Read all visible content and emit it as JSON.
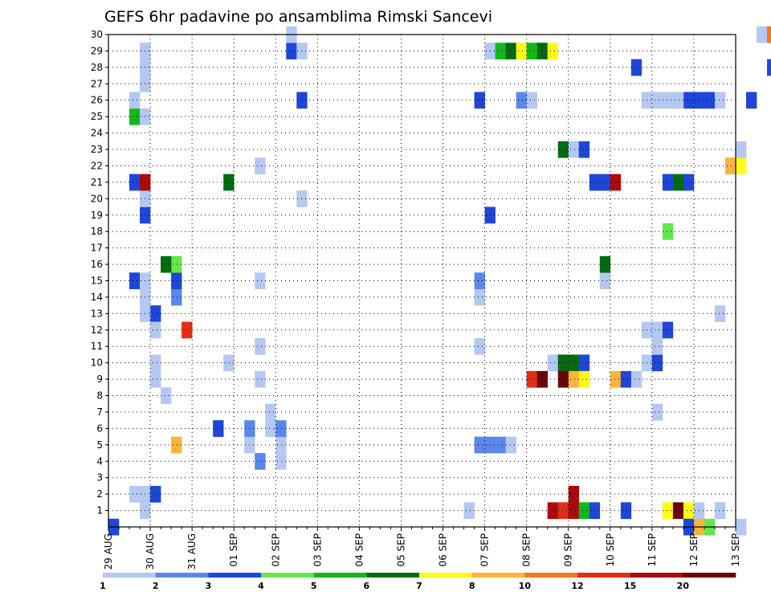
{
  "chart_data": {
    "type": "heatmap",
    "title": "GEFS 6hr padavine po ansamblima Rimski Sancevi",
    "y_ticks": [
      1,
      2,
      3,
      4,
      5,
      6,
      7,
      8,
      9,
      10,
      11,
      12,
      13,
      14,
      15,
      16,
      17,
      18,
      19,
      20,
      21,
      22,
      23,
      24,
      25,
      26,
      27,
      28,
      29,
      30
    ],
    "x_tick_labels": [
      "29 AUG",
      "30 AUG",
      "31 AUG",
      "01 SEP",
      "02 SEP",
      "03 SEP",
      "04 SEP",
      "05 SEP",
      "06 SEP",
      "07 SEP",
      "08 SEP",
      "09 SEP",
      "10 SEP",
      "11 SEP",
      "12 SEP",
      "13 SEP"
    ],
    "x_unit": "6-hour steps from 29 AUG 00Z",
    "grid": "dotted",
    "legend": {
      "labels": [
        "1",
        "2",
        "3",
        "4",
        "5",
        "6",
        "7",
        "8",
        "10",
        "12",
        "15",
        "20"
      ],
      "colors": [
        "#b4c8f2",
        "#5a87eb",
        "#1e46d8",
        "#66e64c",
        "#11b81a",
        "#056b12",
        "#fefa14",
        "#fbb43c",
        "#f5781e",
        "#e32d14",
        "#ae0a0a",
        "#6d0506"
      ]
    },
    "cells": [
      [
        0,
        0,
        2
      ],
      [
        6,
        14,
        1
      ],
      [
        6,
        15,
        2
      ],
      [
        6,
        16,
        3
      ],
      [
        3,
        1,
        0
      ],
      [
        3,
        2,
        0
      ],
      [
        2,
        2,
        0
      ],
      [
        6,
        5,
        7
      ],
      [
        5,
        8,
        0
      ],
      [
        4,
        9,
        0
      ],
      [
        4,
        10,
        0
      ],
      [
        7,
        12,
        9
      ],
      [
        4,
        13,
        2
      ],
      [
        3,
        13,
        0
      ],
      [
        3,
        14,
        0
      ],
      [
        2,
        15,
        2
      ],
      [
        3,
        15,
        0
      ],
      [
        5,
        16,
        5
      ],
      [
        3,
        19,
        2
      ],
      [
        3,
        20,
        0
      ],
      [
        2,
        21,
        2
      ],
      [
        3,
        21,
        10
      ],
      [
        2,
        25,
        4
      ],
      [
        3,
        25,
        0
      ],
      [
        2,
        26,
        0
      ],
      [
        3,
        27,
        0
      ],
      [
        3,
        28,
        0
      ],
      [
        3,
        29,
        0
      ],
      [
        4,
        2,
        2
      ],
      [
        4,
        12,
        0
      ],
      [
        11,
        10,
        0
      ],
      [
        11,
        21,
        5
      ],
      [
        10,
        6,
        2
      ],
      [
        13,
        5,
        0
      ],
      [
        13,
        6,
        1
      ],
      [
        14,
        4,
        1
      ],
      [
        14,
        9,
        0
      ],
      [
        14,
        11,
        0
      ],
      [
        14,
        15,
        0
      ],
      [
        14,
        22,
        0
      ],
      [
        15,
        6,
        0
      ],
      [
        15,
        7,
        0
      ],
      [
        16,
        4,
        0
      ],
      [
        16,
        5,
        0
      ],
      [
        16,
        6,
        1
      ],
      [
        17,
        29,
        2
      ],
      [
        17,
        30,
        0
      ],
      [
        18,
        20,
        0
      ],
      [
        18,
        26,
        2
      ],
      [
        18,
        29,
        0
      ],
      [
        34,
        1,
        0
      ],
      [
        35,
        11,
        0
      ],
      [
        35,
        14,
        0
      ],
      [
        35,
        26,
        2
      ],
      [
        35,
        5,
        1
      ],
      [
        35,
        15,
        1
      ],
      [
        36,
        5,
        1
      ],
      [
        36,
        19,
        2
      ],
      [
        36,
        29,
        0
      ],
      [
        37,
        5,
        1
      ],
      [
        37,
        29,
        4
      ],
      [
        38,
        5,
        0
      ],
      [
        38,
        29,
        5
      ],
      [
        39,
        29,
        6
      ],
      [
        40,
        29,
        4
      ],
      [
        41,
        29,
        5
      ],
      [
        39,
        26,
        1
      ],
      [
        40,
        26,
        0
      ],
      [
        40,
        9,
        9
      ],
      [
        41,
        9,
        11
      ],
      [
        42,
        29,
        6
      ],
      [
        42,
        10,
        0
      ],
      [
        42,
        1,
        10
      ],
      [
        43,
        10,
        5
      ],
      [
        43,
        1,
        9
      ],
      [
        43,
        9,
        11
      ],
      [
        43,
        23,
        5
      ],
      [
        44,
        10,
        5
      ],
      [
        44,
        1,
        10
      ],
      [
        44,
        9,
        7
      ],
      [
        44,
        23,
        0
      ],
      [
        44,
        2,
        10
      ],
      [
        45,
        10,
        2
      ],
      [
        45,
        1,
        4
      ],
      [
        45,
        9,
        6
      ],
      [
        45,
        23,
        2
      ],
      [
        46,
        1,
        2
      ],
      [
        46,
        21,
        2
      ],
      [
        47,
        21,
        2
      ],
      [
        47,
        15,
        0
      ],
      [
        48,
        21,
        10
      ],
      [
        47,
        16,
        5
      ],
      [
        48,
        9,
        7
      ],
      [
        49,
        9,
        2
      ],
      [
        49,
        1,
        2
      ],
      [
        50,
        28,
        2
      ],
      [
        50,
        9,
        0
      ],
      [
        51,
        26,
        0
      ],
      [
        51,
        10,
        0
      ],
      [
        51,
        12,
        0
      ],
      [
        52,
        26,
        0
      ],
      [
        52,
        7,
        0
      ],
      [
        52,
        10,
        2
      ],
      [
        52,
        11,
        0
      ],
      [
        52,
        12,
        0
      ],
      [
        53,
        26,
        0
      ],
      [
        53,
        1,
        6
      ],
      [
        53,
        12,
        2
      ],
      [
        53,
        18,
        3
      ],
      [
        53,
        21,
        2
      ],
      [
        54,
        21,
        5
      ],
      [
        54,
        1,
        11
      ],
      [
        55,
        21,
        2
      ],
      [
        55,
        1,
        6
      ],
      [
        55,
        0,
        2
      ],
      [
        56,
        0,
        7
      ],
      [
        56,
        1,
        0
      ],
      [
        56,
        26,
        2
      ],
      [
        57,
        0,
        3
      ],
      [
        57,
        26,
        2
      ],
      [
        58,
        1,
        0
      ],
      [
        58,
        26,
        0
      ],
      [
        58,
        13,
        0
      ],
      [
        59,
        22,
        7
      ],
      [
        60,
        22,
        6
      ],
      [
        60,
        23,
        0
      ],
      [
        60,
        0,
        0
      ],
      [
        61,
        26,
        2
      ],
      [
        62,
        30,
        0
      ],
      [
        63,
        30,
        8
      ],
      [
        63,
        28,
        2
      ],
      [
        55,
        26,
        2
      ],
      [
        54,
        26,
        0
      ]
    ]
  }
}
